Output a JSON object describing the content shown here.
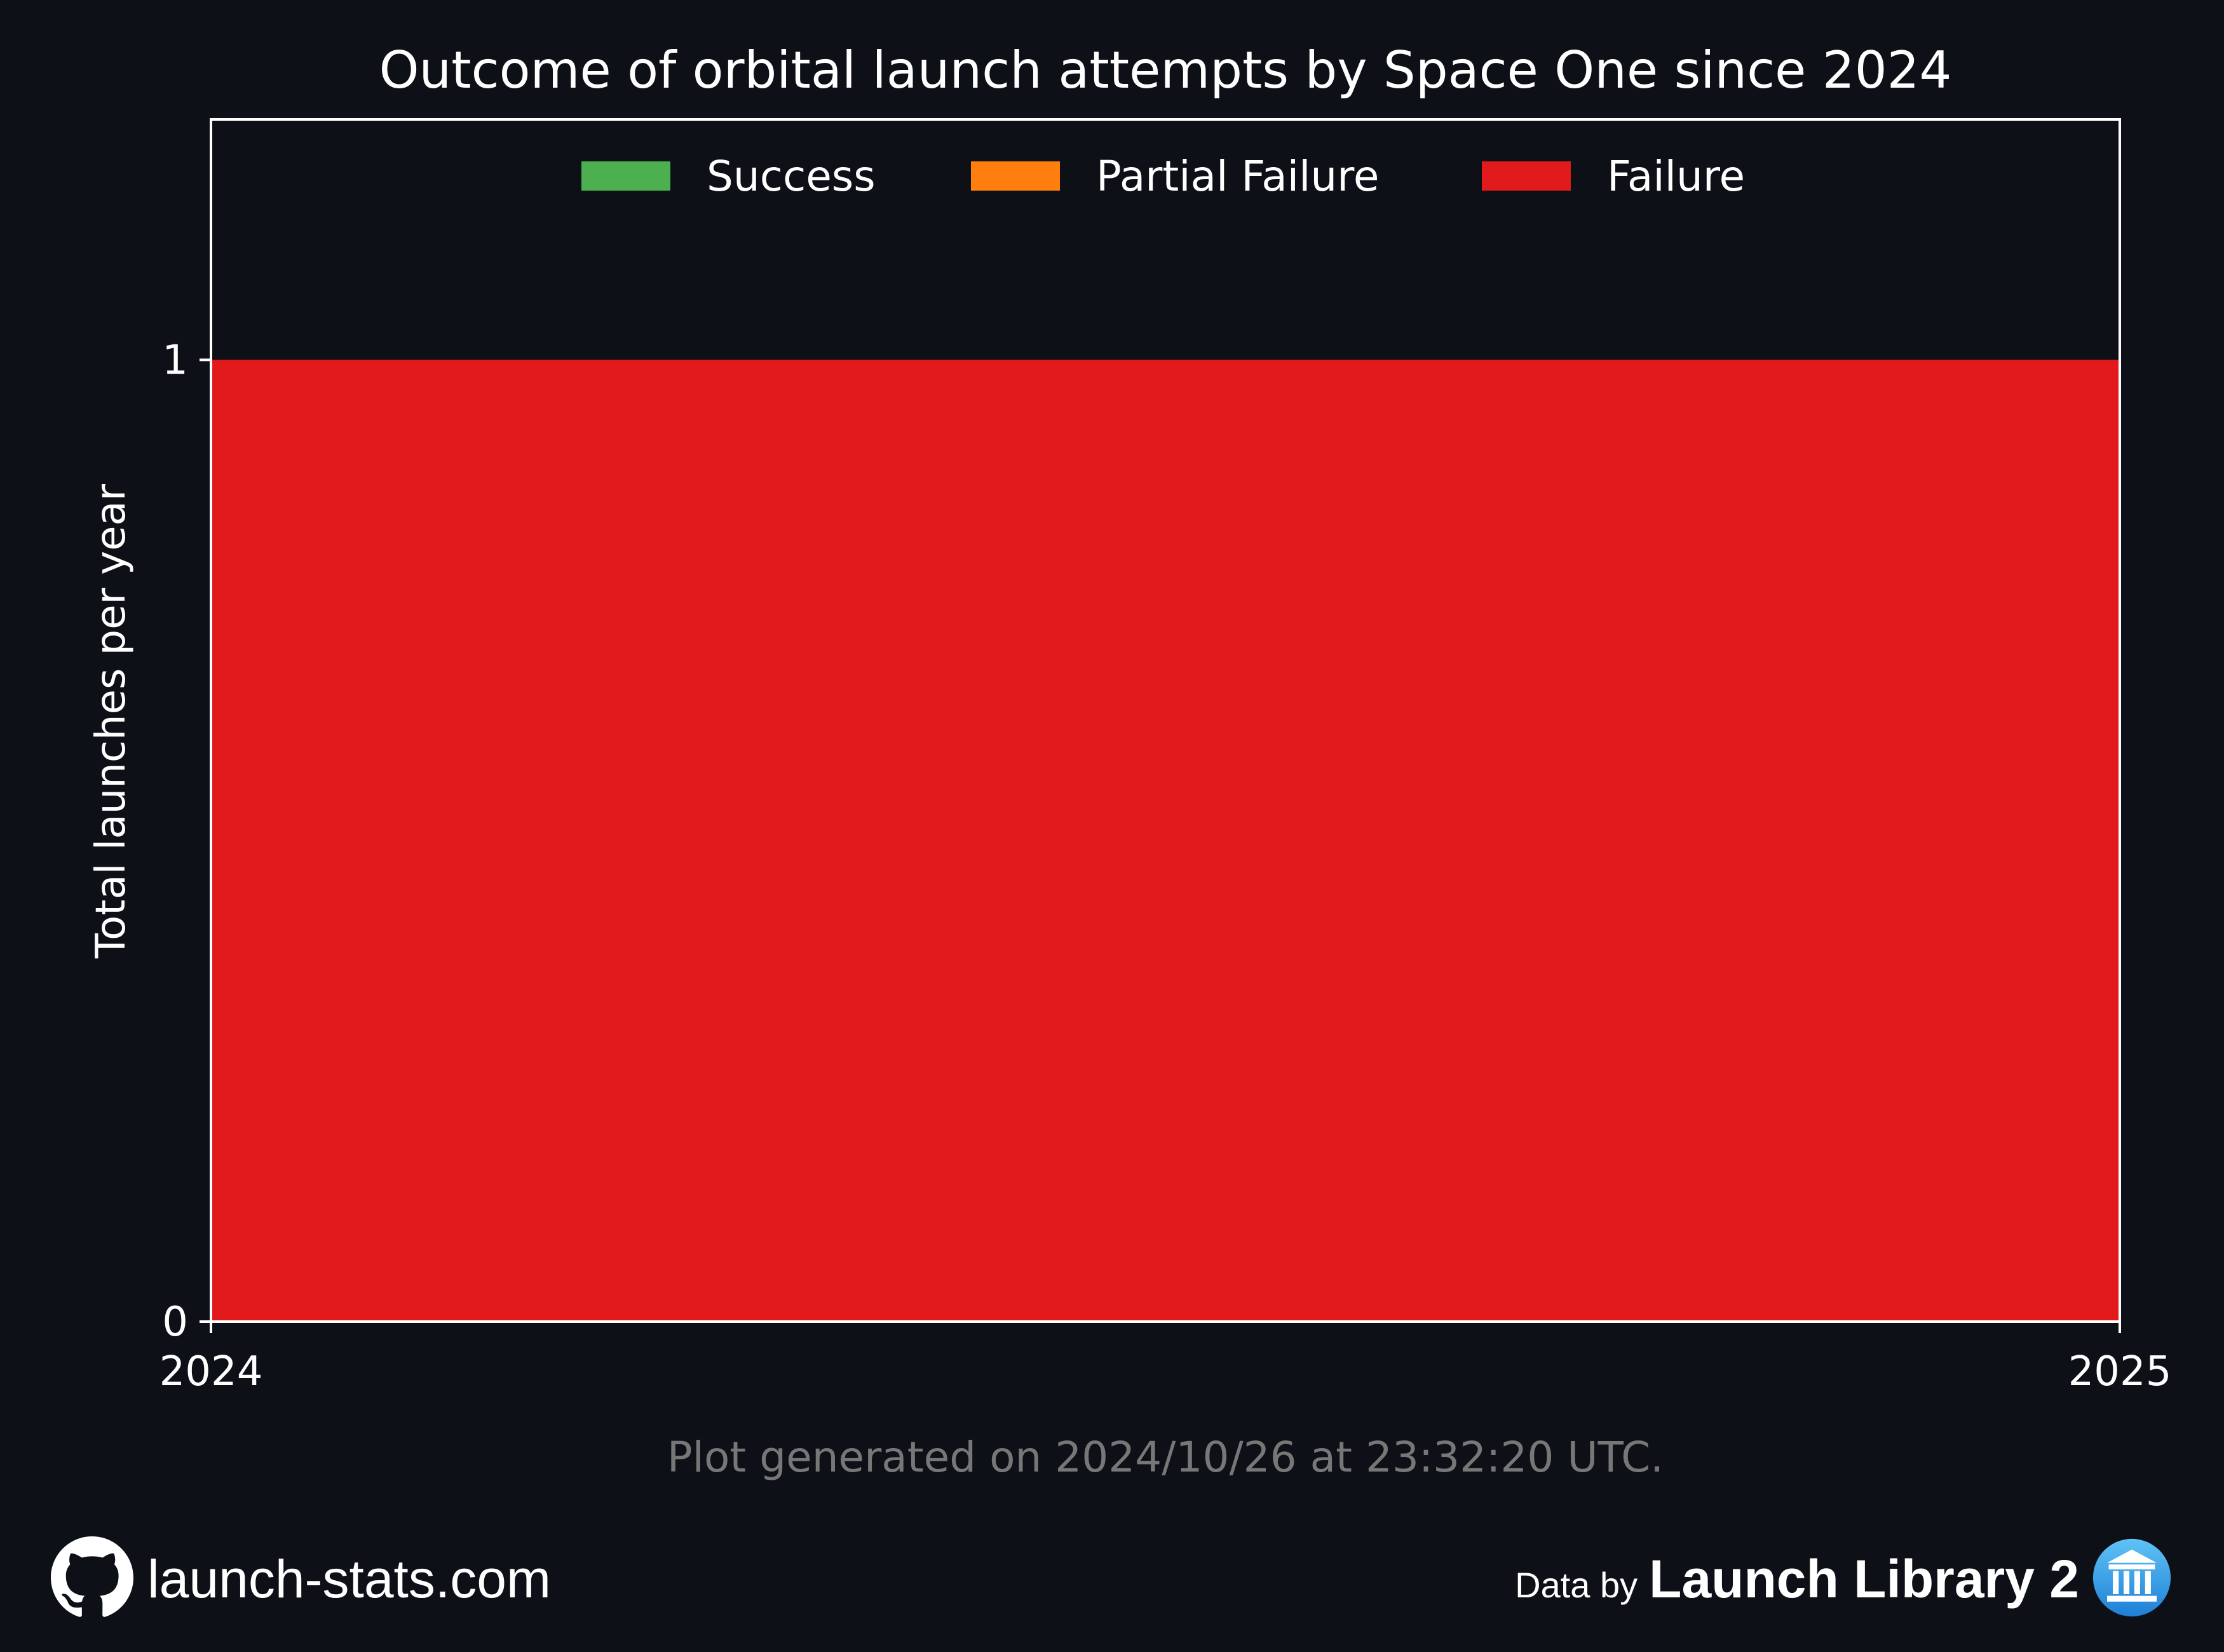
{
  "chart_data": {
    "type": "area",
    "title": "Outcome of orbital launch attempts by Space One since 2024",
    "ylabel": "Total launches per year",
    "xlabel": "",
    "x": [
      2024,
      2025
    ],
    "x_ticks": [
      "2024",
      "2025"
    ],
    "y_ticks": [
      "0",
      "1"
    ],
    "ylim": [
      0,
      1.25
    ],
    "xlim": [
      2024,
      2025
    ],
    "stacked": true,
    "legend_position": "top-center",
    "series": [
      {
        "name": "Success",
        "color": "#4caf50",
        "values": [
          0,
          0
        ]
      },
      {
        "name": "Partial Failure",
        "color": "#ff7f0e",
        "values": [
          0,
          0
        ]
      },
      {
        "name": "Failure",
        "color": "#e31a1c",
        "values": [
          1,
          1
        ]
      }
    ]
  },
  "footer": {
    "generated_note": "Plot generated on 2024/10/26 at 23:32:20 UTC.",
    "site": "launch-stats.com",
    "data_by_prefix": "Data by",
    "data_by_brand": "Launch Library 2"
  },
  "icons": {
    "site_icon": "github-icon",
    "brand_icon": "launch-library-icon"
  },
  "colors": {
    "background": "#0d1017",
    "text": "#ffffff",
    "note": "#777777"
  }
}
